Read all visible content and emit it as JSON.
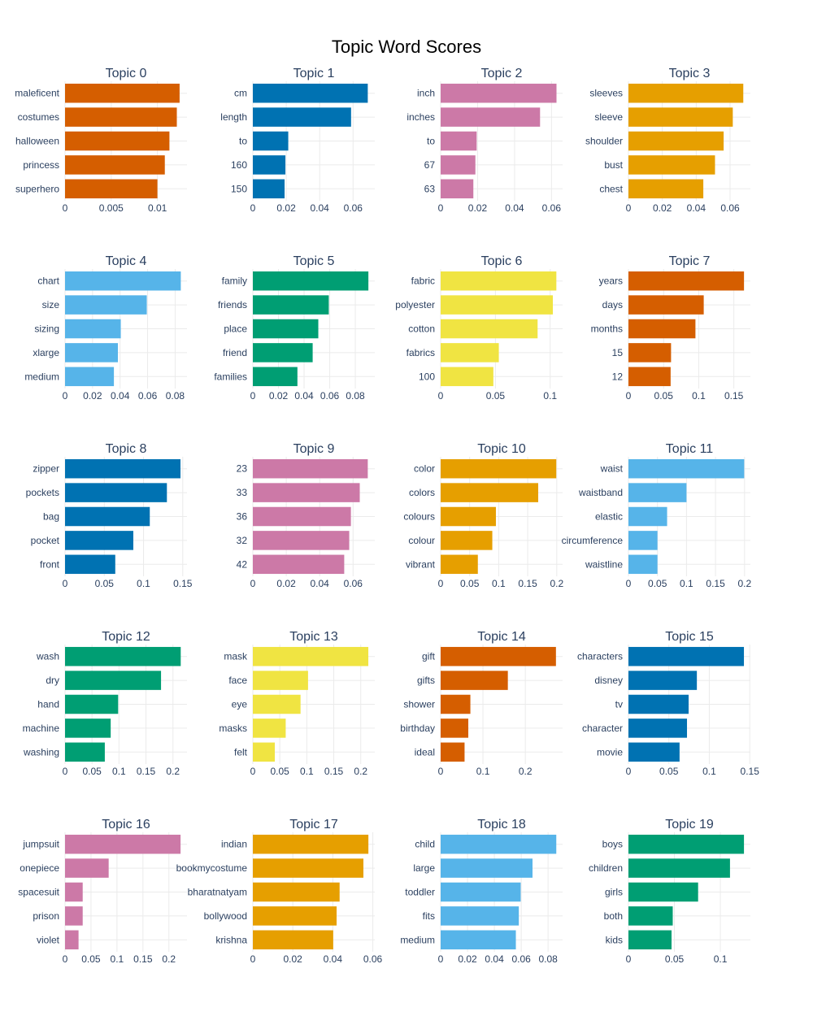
{
  "title": "Topic Word Scores",
  "chart_data": [
    {
      "type": "bar",
      "orientation": "horizontal",
      "title": "Topic 0",
      "color": "#D55E00",
      "categories": [
        "maleficent",
        "costumes",
        "halloween",
        "princess",
        "superhero"
      ],
      "values": [
        0.0124,
        0.0121,
        0.0113,
        0.0108,
        0.01
      ],
      "xlim": [
        0,
        0.0132
      ],
      "ticks": [
        0,
        0.005,
        0.01
      ],
      "tick_labels": [
        "0",
        "0.005",
        "0.01"
      ]
    },
    {
      "type": "bar",
      "orientation": "horizontal",
      "title": "Topic 1",
      "color": "#0072B2",
      "categories": [
        "cm",
        "length",
        "to",
        "160",
        "150"
      ],
      "values": [
        0.0688,
        0.0588,
        0.0212,
        0.0195,
        0.019
      ],
      "xlim": [
        0,
        0.073
      ],
      "ticks": [
        0,
        0.02,
        0.04,
        0.06
      ],
      "tick_labels": [
        "0",
        "0.02",
        "0.04",
        "0.06"
      ]
    },
    {
      "type": "bar",
      "orientation": "horizontal",
      "title": "Topic 2",
      "color": "#CC79A7",
      "categories": [
        "inch",
        "inches",
        "to",
        "67",
        "63"
      ],
      "values": [
        0.0627,
        0.0538,
        0.0195,
        0.0188,
        0.0177
      ],
      "xlim": [
        0,
        0.066
      ],
      "ticks": [
        0,
        0.02,
        0.04,
        0.06
      ],
      "tick_labels": [
        "0",
        "0.02",
        "0.04",
        "0.06"
      ]
    },
    {
      "type": "bar",
      "orientation": "horizontal",
      "title": "Topic 3",
      "color": "#E69F00",
      "categories": [
        "sleeves",
        "sleeve",
        "shoulder",
        "bust",
        "chest"
      ],
      "values": [
        0.0678,
        0.0616,
        0.0562,
        0.0511,
        0.0442
      ],
      "xlim": [
        0,
        0.072
      ],
      "ticks": [
        0,
        0.02,
        0.04,
        0.06
      ],
      "tick_labels": [
        "0",
        "0.02",
        "0.04",
        "0.06"
      ]
    },
    {
      "type": "bar",
      "orientation": "horizontal",
      "title": "Topic 4",
      "color": "#56B4E9",
      "categories": [
        "chart",
        "size",
        "sizing",
        "xlarge",
        "medium"
      ],
      "values": [
        0.0841,
        0.0594,
        0.0405,
        0.0384,
        0.0355
      ],
      "xlim": [
        0,
        0.0886
      ],
      "ticks": [
        0,
        0.02,
        0.04,
        0.06,
        0.08
      ],
      "tick_labels": [
        "0",
        "0.02",
        "0.04",
        "0.06",
        "0.08"
      ]
    },
    {
      "type": "bar",
      "orientation": "horizontal",
      "title": "Topic 5",
      "color": "#009E73",
      "categories": [
        "family",
        "friends",
        "place",
        "friend",
        "families"
      ],
      "values": [
        0.0902,
        0.0593,
        0.0511,
        0.0467,
        0.0348
      ],
      "xlim": [
        0,
        0.0952
      ],
      "ticks": [
        0,
        0.02,
        0.04,
        0.06,
        0.08
      ],
      "tick_labels": [
        "0",
        "0.02",
        "0.04",
        "0.06",
        "0.08"
      ]
    },
    {
      "type": "bar",
      "orientation": "horizontal",
      "title": "Topic 6",
      "color": "#F0E442",
      "categories": [
        "fabric",
        "polyester",
        "cotton",
        "fabrics",
        "100"
      ],
      "values": [
        0.1056,
        0.1024,
        0.0885,
        0.0531,
        0.0481
      ],
      "xlim": [
        0,
        0.1113
      ],
      "ticks": [
        0,
        0.05,
        0.1
      ],
      "tick_labels": [
        "0",
        "0.05",
        "0.1"
      ]
    },
    {
      "type": "bar",
      "orientation": "horizontal",
      "title": "Topic 7",
      "color": "#D55E00",
      "categories": [
        "years",
        "days",
        "months",
        "15",
        "12"
      ],
      "values": [
        0.1644,
        0.1071,
        0.0953,
        0.0606,
        0.06
      ],
      "xlim": [
        0,
        0.1735
      ],
      "ticks": [
        0,
        0.05,
        0.1,
        0.15
      ],
      "tick_labels": [
        "0",
        "0.05",
        "0.1",
        "0.15"
      ]
    },
    {
      "type": "bar",
      "orientation": "horizontal",
      "title": "Topic 8",
      "color": "#0072B2",
      "categories": [
        "zipper",
        "pockets",
        "bag",
        "pocket",
        "front"
      ],
      "values": [
        0.1471,
        0.1298,
        0.108,
        0.087,
        0.064
      ],
      "xlim": [
        0,
        0.1554
      ],
      "ticks": [
        0,
        0.05,
        0.1,
        0.15
      ],
      "tick_labels": [
        "0",
        "0.05",
        "0.1",
        "0.15"
      ]
    },
    {
      "type": "bar",
      "orientation": "horizontal",
      "title": "Topic 9",
      "color": "#CC79A7",
      "categories": [
        "23",
        "33",
        "36",
        "32",
        "42"
      ],
      "values": [
        0.0688,
        0.064,
        0.0587,
        0.0577,
        0.0547
      ],
      "xlim": [
        0,
        0.073
      ],
      "ticks": [
        0,
        0.02,
        0.04,
        0.06
      ],
      "tick_labels": [
        "0",
        "0.02",
        "0.04",
        "0.06"
      ]
    },
    {
      "type": "bar",
      "orientation": "horizontal",
      "title": "Topic 10",
      "color": "#E69F00",
      "categories": [
        "color",
        "colors",
        "colours",
        "colour",
        "vibrant"
      ],
      "values": [
        0.1992,
        0.1681,
        0.0952,
        0.089,
        0.0641
      ],
      "xlim": [
        0,
        0.2101
      ],
      "ticks": [
        0,
        0.05,
        0.1,
        0.15,
        0.2
      ],
      "tick_labels": [
        "0",
        "0.05",
        "0.1",
        "0.15",
        "0.2"
      ]
    },
    {
      "type": "bar",
      "orientation": "horizontal",
      "title": "Topic 11",
      "color": "#56B4E9",
      "categories": [
        "waist",
        "waistband",
        "elastic",
        "circumference",
        "waistline"
      ],
      "values": [
        0.1994,
        0.1,
        0.0666,
        0.05,
        0.05
      ],
      "xlim": [
        0,
        0.2101
      ],
      "ticks": [
        0,
        0.05,
        0.1,
        0.15,
        0.2
      ],
      "tick_labels": [
        "0",
        "0.05",
        "0.1",
        "0.15",
        "0.2"
      ]
    },
    {
      "type": "bar",
      "orientation": "horizontal",
      "title": "Topic 12",
      "color": "#009E73",
      "categories": [
        "wash",
        "dry",
        "hand",
        "machine",
        "washing"
      ],
      "values": [
        0.2144,
        0.1779,
        0.0984,
        0.0846,
        0.0737
      ],
      "xlim": [
        0,
        0.226
      ],
      "ticks": [
        0,
        0.05,
        0.1,
        0.15,
        0.2
      ],
      "tick_labels": [
        "0",
        "0.05",
        "0.1",
        "0.15",
        "0.2"
      ]
    },
    {
      "type": "bar",
      "orientation": "horizontal",
      "title": "Topic 13",
      "color": "#F0E442",
      "categories": [
        "mask",
        "face",
        "eye",
        "masks",
        "felt"
      ],
      "values": [
        0.214,
        0.1023,
        0.0884,
        0.0609,
        0.0407
      ],
      "xlim": [
        0,
        0.226
      ],
      "ticks": [
        0,
        0.05,
        0.1,
        0.15,
        0.2
      ],
      "tick_labels": [
        "0",
        "0.05",
        "0.1",
        "0.15",
        "0.2"
      ]
    },
    {
      "type": "bar",
      "orientation": "horizontal",
      "title": "Topic 14",
      "color": "#D55E00",
      "categories": [
        "gift",
        "gifts",
        "shower",
        "birthday",
        "ideal"
      ],
      "values": [
        0.2723,
        0.1587,
        0.0702,
        0.0653,
        0.0565
      ],
      "xlim": [
        0,
        0.288
      ],
      "ticks": [
        0,
        0.1,
        0.2
      ],
      "tick_labels": [
        "0",
        "0.1",
        "0.2"
      ]
    },
    {
      "type": "bar",
      "orientation": "horizontal",
      "title": "Topic 15",
      "color": "#0072B2",
      "categories": [
        "characters",
        "disney",
        "tv",
        "character",
        "movie"
      ],
      "values": [
        0.1428,
        0.0846,
        0.0744,
        0.0724,
        0.0632
      ],
      "xlim": [
        0,
        0.1508
      ],
      "ticks": [
        0,
        0.05,
        0.1,
        0.15
      ],
      "tick_labels": [
        "0",
        "0.05",
        "0.1",
        "0.15"
      ]
    },
    {
      "type": "bar",
      "orientation": "horizontal",
      "title": "Topic 16",
      "color": "#CC79A7",
      "categories": [
        "jumpsuit",
        "onepiece",
        "spacesuit",
        "prison",
        "violet"
      ],
      "values": [
        0.2224,
        0.084,
        0.034,
        0.034,
        0.026
      ],
      "xlim": [
        0,
        0.2348
      ],
      "ticks": [
        0,
        0.05,
        0.1,
        0.15,
        0.2
      ],
      "tick_labels": [
        "0",
        "0.05",
        "0.1",
        "0.15",
        "0.2"
      ]
    },
    {
      "type": "bar",
      "orientation": "horizontal",
      "title": "Topic 17",
      "color": "#E69F00",
      "categories": [
        "indian",
        "bookmycostume",
        "bharatnatyam",
        "bollywood",
        "krishna"
      ],
      "values": [
        0.0578,
        0.0553,
        0.0434,
        0.0419,
        0.0402
      ],
      "xlim": [
        0,
        0.061
      ],
      "ticks": [
        0,
        0.02,
        0.04,
        0.06
      ],
      "tick_labels": [
        "0",
        "0.02",
        "0.04",
        "0.06"
      ]
    },
    {
      "type": "bar",
      "orientation": "horizontal",
      "title": "Topic 18",
      "color": "#56B4E9",
      "categories": [
        "child",
        "large",
        "toddler",
        "fits",
        "medium"
      ],
      "values": [
        0.0861,
        0.0684,
        0.0596,
        0.0582,
        0.056
      ],
      "xlim": [
        0,
        0.0908
      ],
      "ticks": [
        0,
        0.02,
        0.04,
        0.06,
        0.08
      ],
      "tick_labels": [
        "0",
        "0.02",
        "0.04",
        "0.06",
        "0.08"
      ]
    },
    {
      "type": "bar",
      "orientation": "horizontal",
      "title": "Topic 19",
      "color": "#009E73",
      "categories": [
        "boys",
        "children",
        "girls",
        "both",
        "kids"
      ],
      "values": [
        0.1257,
        0.1105,
        0.0758,
        0.0482,
        0.0469
      ],
      "xlim": [
        0,
        0.1327
      ],
      "ticks": [
        0,
        0.05,
        0.1
      ],
      "tick_labels": [
        "0",
        "0.05",
        "0.1"
      ]
    }
  ]
}
